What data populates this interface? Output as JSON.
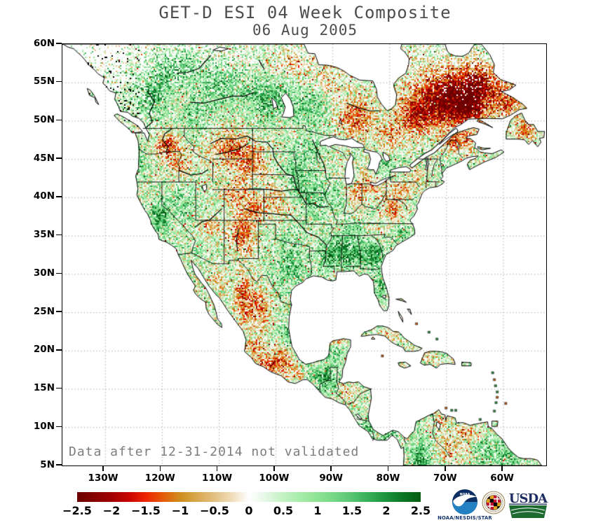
{
  "title": "GET-D ESI 04 Week Composite",
  "subtitle": "06 Aug 2005",
  "annotation": "Data after 12-31-2014 not validated",
  "map": {
    "lat_ticks": [
      "60N",
      "55N",
      "50N",
      "45N",
      "40N",
      "35N",
      "30N",
      "25N",
      "20N",
      "15N",
      "10N",
      "5N"
    ],
    "lon_ticks": [
      "130W",
      "120W",
      "110W",
      "100W",
      "90W",
      "80W",
      "70W",
      "60W"
    ],
    "lat_range_deg": [
      5,
      60
    ],
    "lon_range_deg": [
      -137.5,
      -52.4
    ],
    "grid": "dotted"
  },
  "colorbar": {
    "tick_labels": [
      "−2.5",
      "−2",
      "−1.5",
      "−1",
      "−0.5",
      "0",
      "0.5",
      "1",
      "1.5",
      "2",
      "2.5"
    ],
    "values": [
      -2.5,
      -2,
      -1.5,
      -1,
      -0.5,
      0,
      0.5,
      1,
      1.5,
      2,
      2.5
    ],
    "gradient": [
      {
        "v": -2.5,
        "c": "#6b0000"
      },
      {
        "v": -2.0,
        "c": "#a00000"
      },
      {
        "v": -1.75,
        "c": "#c80500"
      },
      {
        "v": -1.5,
        "c": "#ee2400"
      },
      {
        "v": -1.25,
        "c": "#e45c09"
      },
      {
        "v": -1.0,
        "c": "#cf8e1e"
      },
      {
        "v": -0.75,
        "c": "#d9a84e"
      },
      {
        "v": -0.5,
        "c": "#e3c183"
      },
      {
        "v": -0.25,
        "c": "#f0ddb9"
      },
      {
        "v": 0.0,
        "c": "#ffffff"
      },
      {
        "v": 0.25,
        "c": "#e4f7e4"
      },
      {
        "v": 0.5,
        "c": "#c2f2c2"
      },
      {
        "v": 0.75,
        "c": "#a5eca8"
      },
      {
        "v": 1.0,
        "c": "#8ee394"
      },
      {
        "v": 1.25,
        "c": "#74d686"
      },
      {
        "v": 1.5,
        "c": "#55c472"
      },
      {
        "v": 1.75,
        "c": "#35ad57"
      },
      {
        "v": 2.0,
        "c": "#1b923c"
      },
      {
        "v": 2.25,
        "c": "#0b7524"
      },
      {
        "v": 2.5,
        "c": "#055c12"
      }
    ]
  },
  "logos": {
    "noaa_label": "NOAA",
    "noaa_caption": "NOAA/NESDIS/STAR",
    "umd_label": "UNIVERSITY OF MARYLAND",
    "usda_label": "USDA",
    "noaa_navy": "#0c2e63",
    "noaa_blue": "#2381c3",
    "usda_navy": "#1d2d62",
    "usda_green": "#1e6b31",
    "umd_red": "#c41230",
    "umd_gold": "#e1a41f"
  }
}
